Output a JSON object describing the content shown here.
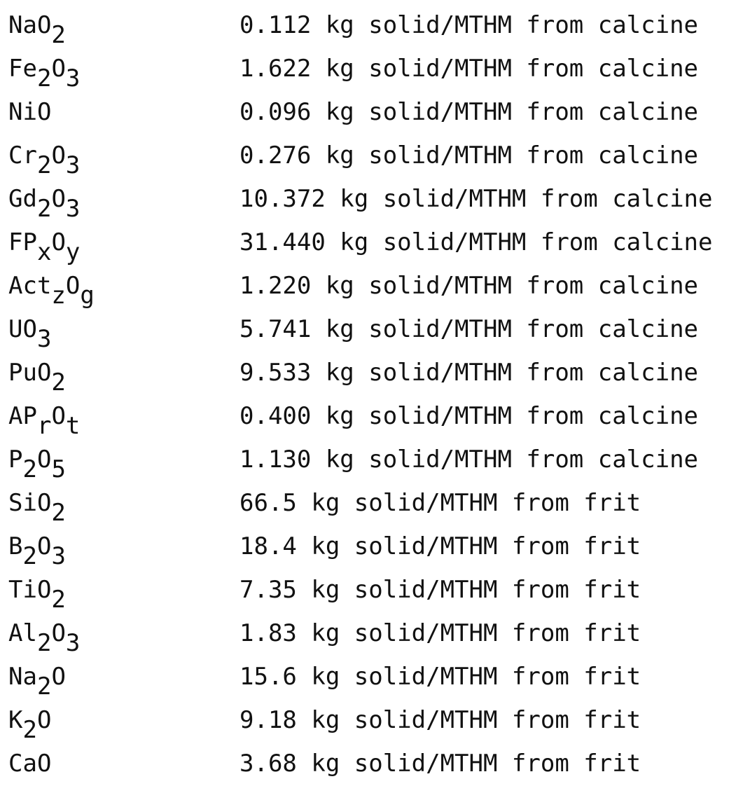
{
  "rows": [
    {
      "formula": [
        "NaO",
        "2"
      ],
      "text": "0.112 kg solid/MTHM from calcine"
    },
    {
      "formula": [
        "Fe",
        "2",
        "O",
        "3"
      ],
      "text": "1.622 kg solid/MTHM from calcine"
    },
    {
      "formula": [
        "NiO"
      ],
      "text": "0.096 kg solid/MTHM from calcine"
    },
    {
      "formula": [
        "Cr",
        "2",
        "O",
        "3"
      ],
      "text": "0.276 kg solid/MTHM from calcine"
    },
    {
      "formula": [
        "Gd",
        "2",
        "O",
        "3"
      ],
      "text": "10.372 kg solid/MTHM from calcine"
    },
    {
      "formula": [
        "FP",
        "x",
        "O",
        "y"
      ],
      "text": "31.440 kg solid/MTHM from calcine"
    },
    {
      "formula": [
        "Act",
        "z",
        "O",
        "g"
      ],
      "text": "1.220 kg solid/MTHM from calcine"
    },
    {
      "formula": [
        "UO",
        "3"
      ],
      "text": "5.741 kg solid/MTHM from calcine"
    },
    {
      "formula": [
        "PuO",
        "2"
      ],
      "text": "9.533 kg solid/MTHM from calcine"
    },
    {
      "formula": [
        "AP",
        "r",
        "O",
        "t"
      ],
      "text": "0.400 kg solid/MTHM from calcine"
    },
    {
      "formula": [
        "P",
        "2",
        "O",
        "5"
      ],
      "text": "1.130 kg solid/MTHM from calcine"
    },
    {
      "formula": [
        "SiO",
        "2"
      ],
      "text": "66.5 kg solid/MTHM from frit"
    },
    {
      "formula": [
        "B",
        "2",
        "O",
        "3"
      ],
      "text": "18.4 kg solid/MTHM from frit"
    },
    {
      "formula": [
        "TiO",
        "2"
      ],
      "text": "7.35 kg solid/MTHM from frit"
    },
    {
      "formula": [
        "Al",
        "2",
        "O",
        "3"
      ],
      "text": "1.83 kg solid/MTHM from frit"
    },
    {
      "formula": [
        "Na",
        "2",
        "O"
      ],
      "text": "15.6 kg solid/MTHM from frit"
    },
    {
      "formula": [
        "K",
        "2",
        "O"
      ],
      "text": "9.18 kg solid/MTHM from frit"
    },
    {
      "formula": [
        "CaO"
      ],
      "text": "3.68 kg solid/MTHM from frit"
    }
  ]
}
